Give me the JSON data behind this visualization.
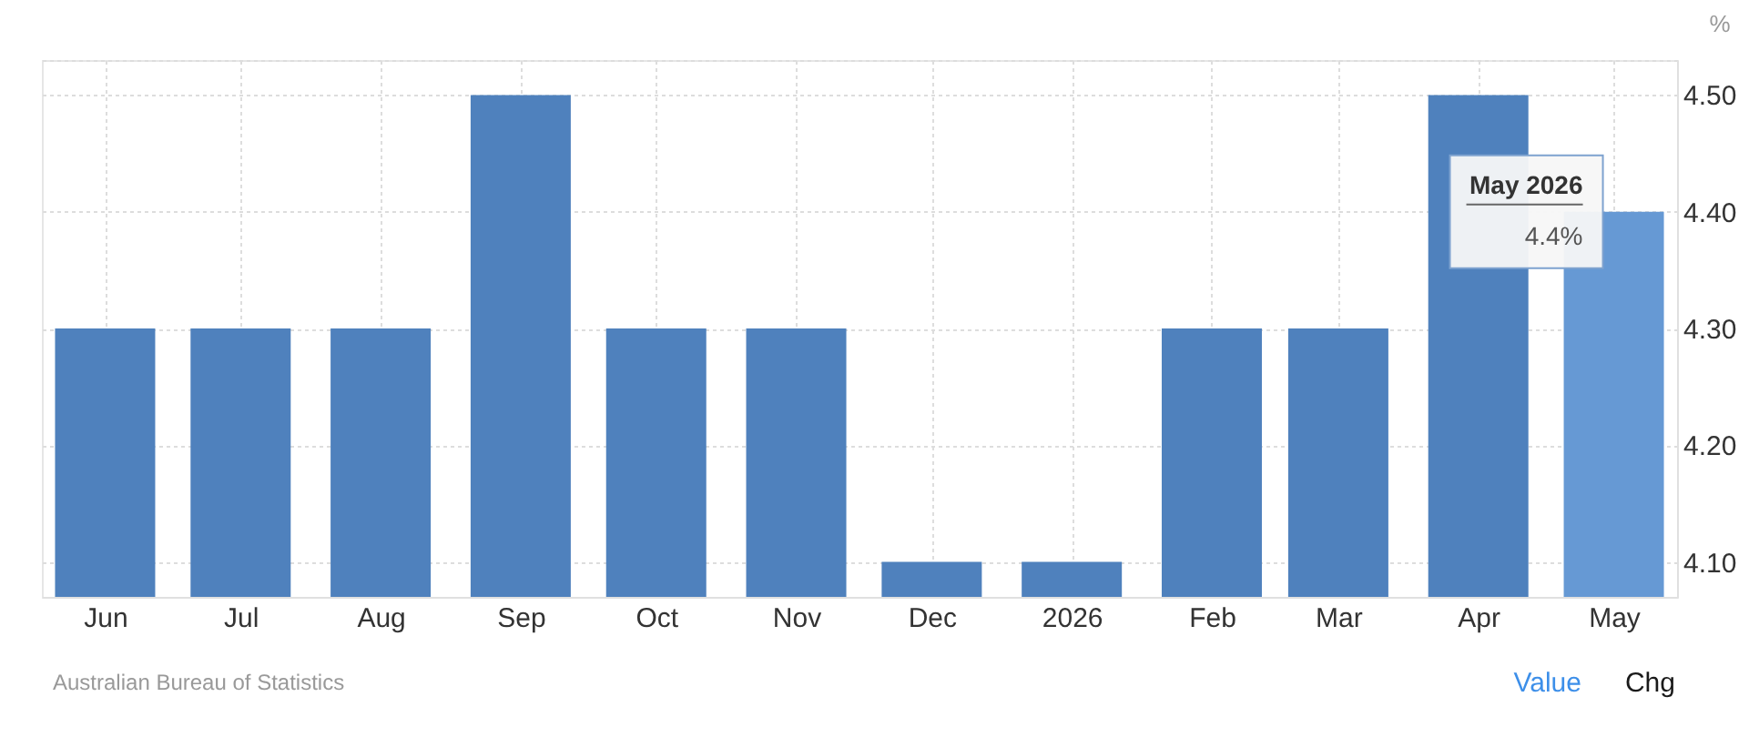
{
  "chart_data": {
    "type": "bar",
    "x": [
      "2025-06",
      "2025-07",
      "2025-08",
      "2025-09",
      "2025-10",
      "2025-11",
      "2025-12",
      "2026-01",
      "2026-02",
      "2026-03",
      "2026-04",
      "2026-05"
    ],
    "values": [
      4.3,
      4.3,
      4.3,
      4.5,
      4.3,
      4.3,
      4.1,
      4.1,
      4.3,
      4.3,
      4.5,
      4.4
    ],
    "colors": [
      "#4f81bd",
      "#4f81bd",
      "#4f81bd",
      "#4f81bd",
      "#4f81bd",
      "#4f81bd",
      "#4f81bd",
      "#4f81bd",
      "#4f81bd",
      "#4f81bd",
      "#4f81bd",
      "#6699d4"
    ],
    "ylabel": "%",
    "xlim": [
      "2025-05-18",
      "2026-05-15"
    ],
    "xticks": [
      {
        "value": "2025-06",
        "label": "Jun"
      },
      {
        "value": "2025-07",
        "label": "Jul"
      },
      {
        "value": "2025-08",
        "label": "Aug"
      },
      {
        "value": "2025-09",
        "label": "Sep"
      },
      {
        "value": "2025-10",
        "label": "Oct"
      },
      {
        "value": "2025-11",
        "label": "Nov"
      },
      {
        "value": "2025-12",
        "label": "Dec"
      },
      {
        "value": "2026-01",
        "label": "2026"
      },
      {
        "value": "2026-02",
        "label": "Feb"
      },
      {
        "value": "2026-03",
        "label": "Mar"
      },
      {
        "value": "2026-04",
        "label": "Apr"
      },
      {
        "value": "2026-05",
        "label": "May"
      }
    ],
    "ylim": [
      4.07,
      4.53
    ],
    "yticks": [
      {
        "value": 4.1,
        "label": "4.10"
      },
      {
        "value": 4.2,
        "label": "4.20"
      },
      {
        "value": 4.3,
        "label": "4.30"
      },
      {
        "value": 4.4,
        "label": "4.40"
      },
      {
        "value": 4.5,
        "label": "4.50"
      },
      {
        "value": 4.53,
        "label": null
      }
    ],
    "grid": true,
    "annotations": [
      {
        "text": "May 2026",
        "x": "2026-05",
        "y": 4.4
      },
      {
        "text": "4.4%",
        "x": "2026-05",
        "y": 4.4
      },
      "Australian Bureau of Statistics",
      "Value",
      "Chg"
    ]
  }
}
